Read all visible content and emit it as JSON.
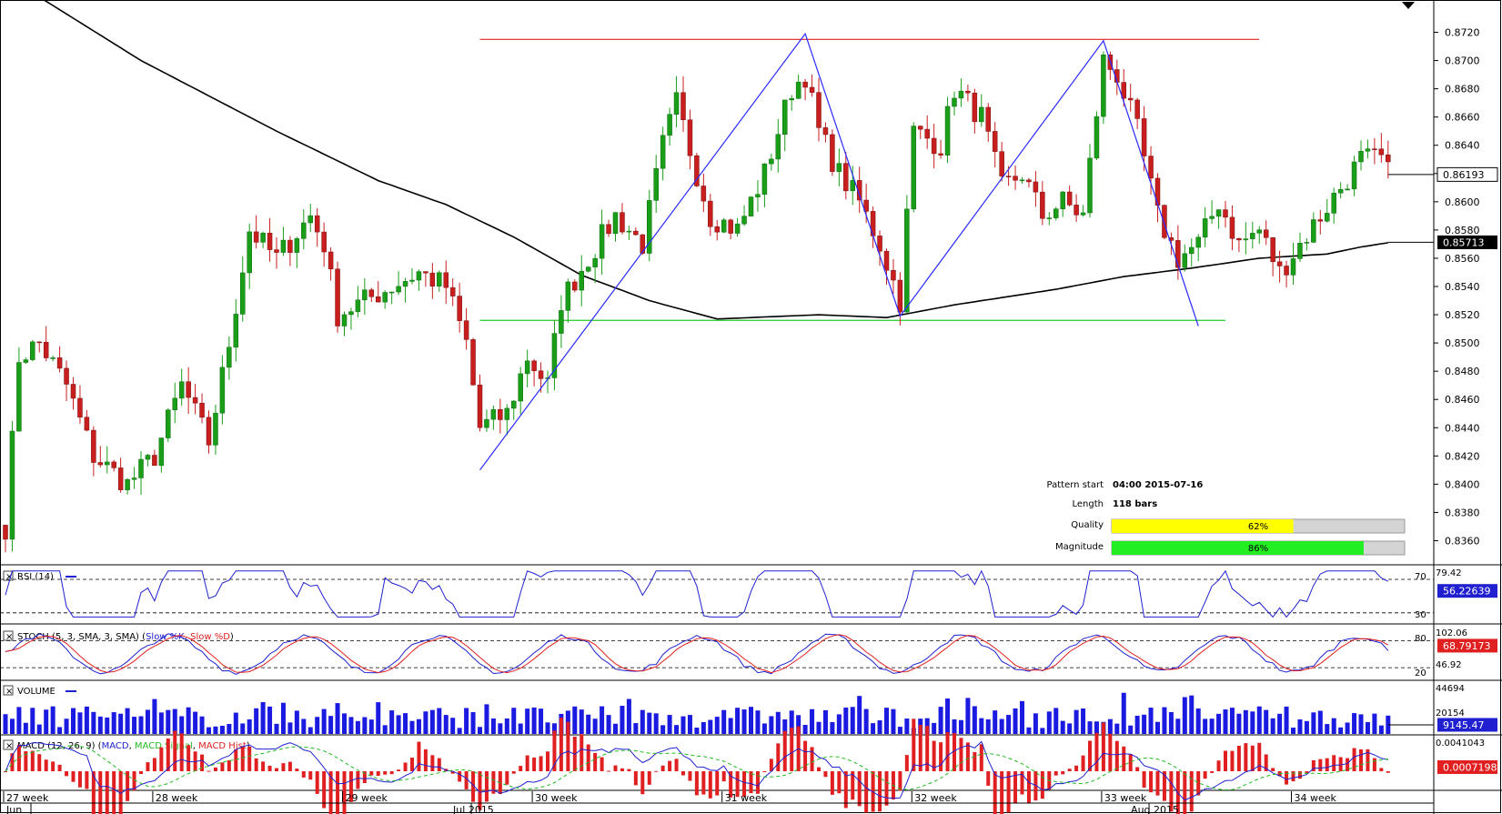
{
  "chart_data": {
    "type": "candlestick",
    "main": {
      "ylim": [
        0.835,
        0.873
      ],
      "y_ticks": [
        "0.8720",
        "0.8700",
        "0.8680",
        "0.8660",
        "0.8640",
        "0.8620",
        "0.8600",
        "0.8580",
        "0.8560",
        "0.8540",
        "0.8520",
        "0.8500",
        "0.8480",
        "0.8460",
        "0.8440",
        "0.8420",
        "0.8400",
        "0.8380",
        "0.8360"
      ],
      "last_price": "0.86193",
      "ma_value": "0.85713",
      "resistance_level": 0.8715,
      "support_level": 0.8516,
      "pattern_points": [
        {
          "bar": 70,
          "price": 0.841
        },
        {
          "bar": 118,
          "price": 0.8719
        },
        {
          "bar": 132,
          "price": 0.8519
        },
        {
          "bar": 162,
          "price": 0.8714
        },
        {
          "bar": 176,
          "price": 0.8512
        }
      ],
      "bars_count": 205
    },
    "x_axis": {
      "week_labels": [
        {
          "label": "27 week",
          "bar": 0
        },
        {
          "label": "28 week",
          "bar": 22
        },
        {
          "label": "29 week",
          "bar": 50
        },
        {
          "label": "30 week",
          "bar": 78
        },
        {
          "label": "31 week",
          "bar": 106
        },
        {
          "label": "32 week",
          "bar": 134
        },
        {
          "label": "33 week",
          "bar": 162
        },
        {
          "label": "34 week",
          "bar": 190
        }
      ],
      "month_labels": [
        {
          "label": "Jun",
          "bar": 0
        },
        {
          "label": "Jul 2015",
          "bar": 69
        },
        {
          "label": "Aug 2015",
          "bar": 169
        }
      ]
    },
    "indicators": {
      "rsi": {
        "title": "RSI (14)",
        "value": "56.22639",
        "top": "79.42",
        "lvl_high": "70",
        "lvl_low": "30"
      },
      "stoch": {
        "title": "STOCH (5, 3, SMA, 3, SMA)",
        "k_label": "Slow %K",
        "d_label": "Slow %D",
        "value": "68.79173",
        "top": "102.06",
        "lvl_high": "80",
        "lvl_low": "20",
        "sub": "46.92"
      },
      "volume": {
        "title": "VOLUME",
        "value": "9145.47",
        "top": "44694",
        "mid": "20154"
      },
      "macd": {
        "title": "MACD (12, 26, 9)",
        "macd_label": "MACD",
        "signal_label": "MACD Signal",
        "hist_label": "MACD Hist",
        "value": "0.0007198",
        "top": "0.0041043"
      }
    }
  },
  "info_panel": {
    "pattern_start_label": "Pattern start",
    "pattern_start_value": "04:00 2015-07-16",
    "length_label": "Length",
    "length_value": "118 bars",
    "quality_label": "Quality",
    "quality_value": "62%",
    "quality_fraction": 0.62,
    "magnitude_label": "Magnitude",
    "magnitude_value": "86%",
    "magnitude_fraction": 0.86
  },
  "colors": {
    "bull": "#1a9e1a",
    "bear": "#c81e1e",
    "pattern": "#2a2aff",
    "resistance": "#e02020",
    "support": "#22cc22",
    "ma": "#000000",
    "rsi": "#2020d0",
    "stoch_k": "#2020d0",
    "stoch_d": "#e02020",
    "volume": "#1a1ae0",
    "macd": "#2020d0",
    "signal": "#22bb22",
    "hist": "#e02020",
    "quality": "#ffff00",
    "magnitude": "#22ee22"
  }
}
